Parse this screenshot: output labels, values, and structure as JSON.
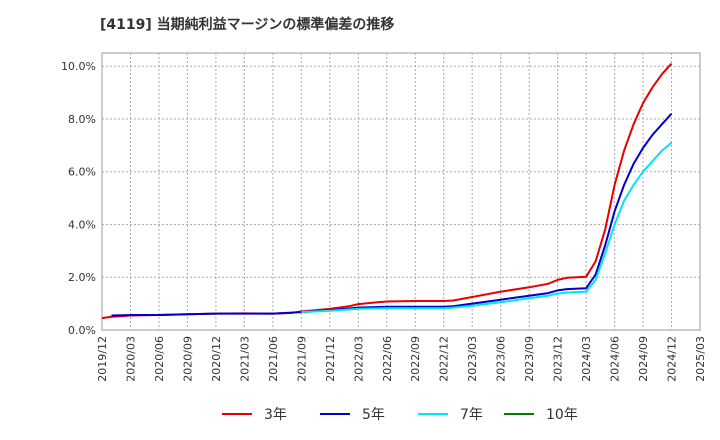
{
  "title": "[4119]  当期純利益マージンの標準偏差の推移",
  "chart_data": {
    "type": "line",
    "title": "[4119]  当期純利益マージンの標準偏差の推移",
    "xlabel": "",
    "ylabel": "",
    "x_ticks": [
      "2019/12",
      "2020/03",
      "2020/06",
      "2020/09",
      "2020/12",
      "2021/03",
      "2021/06",
      "2021/09",
      "2021/12",
      "2022/03",
      "2022/06",
      "2022/09",
      "2022/12",
      "2023/03",
      "2023/06",
      "2023/09",
      "2023/12",
      "2024/03",
      "2024/06",
      "2024/09",
      "2024/12",
      "2025/03"
    ],
    "y_ticks": [
      "0.0%",
      "2.0%",
      "4.0%",
      "6.0%",
      "8.0%",
      "10.0%"
    ],
    "ylim": [
      0,
      10.5
    ],
    "grid": true,
    "legend_position": "bottom",
    "series": [
      {
        "name": "3年",
        "color": "#e60000",
        "points": [
          [
            "2019/12",
            0.45
          ],
          [
            "2020/01",
            0.5
          ],
          [
            "2020/02",
            0.52
          ],
          [
            "2020/03",
            0.55
          ],
          [
            "2020/06",
            0.57
          ],
          [
            "2020/09",
            0.6
          ],
          [
            "2020/12",
            0.62
          ],
          [
            "2021/03",
            0.63
          ],
          [
            "2021/06",
            0.62
          ],
          [
            "2021/08",
            0.65
          ],
          [
            "2021/09",
            0.7
          ],
          [
            "2021/12",
            0.8
          ],
          [
            "2022/02",
            0.9
          ],
          [
            "2022/03",
            0.98
          ],
          [
            "2022/05",
            1.05
          ],
          [
            "2022/06",
            1.08
          ],
          [
            "2022/09",
            1.1
          ],
          [
            "2022/12",
            1.1
          ],
          [
            "2023/01",
            1.12
          ],
          [
            "2023/03",
            1.25
          ],
          [
            "2023/06",
            1.45
          ],
          [
            "2023/09",
            1.62
          ],
          [
            "2023/11",
            1.75
          ],
          [
            "2023/12",
            1.9
          ],
          [
            "2024/01",
            1.98
          ],
          [
            "2024/02",
            2.0
          ],
          [
            "2024/03",
            2.02
          ],
          [
            "2024/04",
            2.6
          ],
          [
            "2024/05",
            3.8
          ],
          [
            "2024/06",
            5.5
          ],
          [
            "2024/07",
            6.8
          ],
          [
            "2024/08",
            7.8
          ],
          [
            "2024/09",
            8.6
          ],
          [
            "2024/10",
            9.2
          ],
          [
            "2024/11",
            9.7
          ],
          [
            "2024/12",
            10.1
          ]
        ]
      },
      {
        "name": "5年",
        "color": "#0000cc",
        "points": [
          [
            "2020/01",
            0.55
          ],
          [
            "2020/03",
            0.57
          ],
          [
            "2020/06",
            0.57
          ],
          [
            "2020/09",
            0.6
          ],
          [
            "2020/12",
            0.62
          ],
          [
            "2021/03",
            0.62
          ],
          [
            "2021/06",
            0.62
          ],
          [
            "2021/09",
            0.68
          ],
          [
            "2021/12",
            0.75
          ],
          [
            "2022/03",
            0.85
          ],
          [
            "2022/06",
            0.88
          ],
          [
            "2022/09",
            0.88
          ],
          [
            "2022/12",
            0.88
          ],
          [
            "2023/01",
            0.9
          ],
          [
            "2023/03",
            1.0
          ],
          [
            "2023/06",
            1.15
          ],
          [
            "2023/09",
            1.3
          ],
          [
            "2023/11",
            1.4
          ],
          [
            "2023/12",
            1.5
          ],
          [
            "2024/01",
            1.55
          ],
          [
            "2024/03",
            1.58
          ],
          [
            "2024/04",
            2.1
          ],
          [
            "2024/05",
            3.2
          ],
          [
            "2024/06",
            4.5
          ],
          [
            "2024/07",
            5.5
          ],
          [
            "2024/08",
            6.3
          ],
          [
            "2024/09",
            6.9
          ],
          [
            "2024/10",
            7.4
          ],
          [
            "2024/11",
            7.8
          ],
          [
            "2024/12",
            8.2
          ]
        ]
      },
      {
        "name": "7年",
        "color": "#00e5ee",
        "points": [
          [
            "2021/09",
            0.68
          ],
          [
            "2021/12",
            0.73
          ],
          [
            "2022/03",
            0.8
          ],
          [
            "2022/06",
            0.83
          ],
          [
            "2022/09",
            0.83
          ],
          [
            "2022/12",
            0.83
          ],
          [
            "2023/01",
            0.85
          ],
          [
            "2023/03",
            0.92
          ],
          [
            "2023/06",
            1.05
          ],
          [
            "2023/09",
            1.2
          ],
          [
            "2023/11",
            1.3
          ],
          [
            "2023/12",
            1.38
          ],
          [
            "2024/01",
            1.42
          ],
          [
            "2024/03",
            1.45
          ],
          [
            "2024/04",
            1.9
          ],
          [
            "2024/05",
            2.9
          ],
          [
            "2024/06",
            4.0
          ],
          [
            "2024/07",
            4.9
          ],
          [
            "2024/08",
            5.5
          ],
          [
            "2024/09",
            6.0
          ],
          [
            "2024/10",
            6.4
          ],
          [
            "2024/11",
            6.8
          ],
          [
            "2024/12",
            7.1
          ]
        ]
      },
      {
        "name": "10年",
        "color": "#008000",
        "points": []
      }
    ]
  }
}
